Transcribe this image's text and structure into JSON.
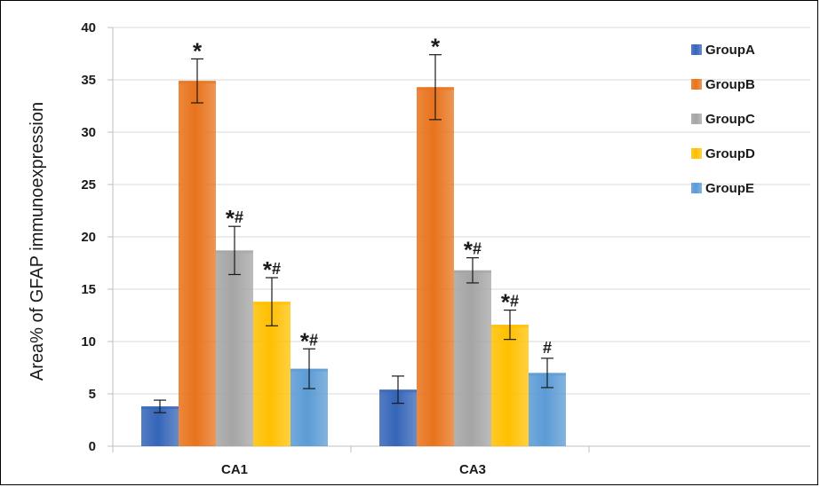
{
  "chart_data": {
    "type": "bar",
    "title": "",
    "xlabel": "",
    "ylabel": "Area% of GFAP immunoexpression",
    "ylim": [
      0,
      40
    ],
    "yticks": [
      0,
      5,
      10,
      15,
      20,
      25,
      30,
      35,
      40
    ],
    "grid": true,
    "legend_position": "right",
    "categories": [
      "CA1",
      "CA3"
    ],
    "series": [
      {
        "name": "GroupA",
        "color": "#3565B8",
        "values": [
          3.8,
          5.4
        ],
        "errors": [
          0.6,
          1.3
        ],
        "annotations": [
          "",
          ""
        ]
      },
      {
        "name": "GroupB",
        "color": "#E8731C",
        "values": [
          34.9,
          34.3
        ],
        "errors": [
          2.1,
          3.1
        ],
        "annotations": [
          "*",
          "*"
        ]
      },
      {
        "name": "GroupC",
        "color": "#A5A5A5",
        "values": [
          18.7,
          16.8
        ],
        "errors": [
          2.3,
          1.2
        ],
        "annotations": [
          "*#",
          "*#"
        ]
      },
      {
        "name": "GroupD",
        "color": "#FFC000",
        "values": [
          13.8,
          11.6
        ],
        "errors": [
          2.3,
          1.4
        ],
        "annotations": [
          "*#",
          "*#"
        ]
      },
      {
        "name": "GroupE",
        "color": "#5B9BD5",
        "values": [
          7.4,
          7.0
        ],
        "errors": [
          1.9,
          1.4
        ],
        "annotations": [
          "*#",
          "#"
        ]
      }
    ]
  }
}
